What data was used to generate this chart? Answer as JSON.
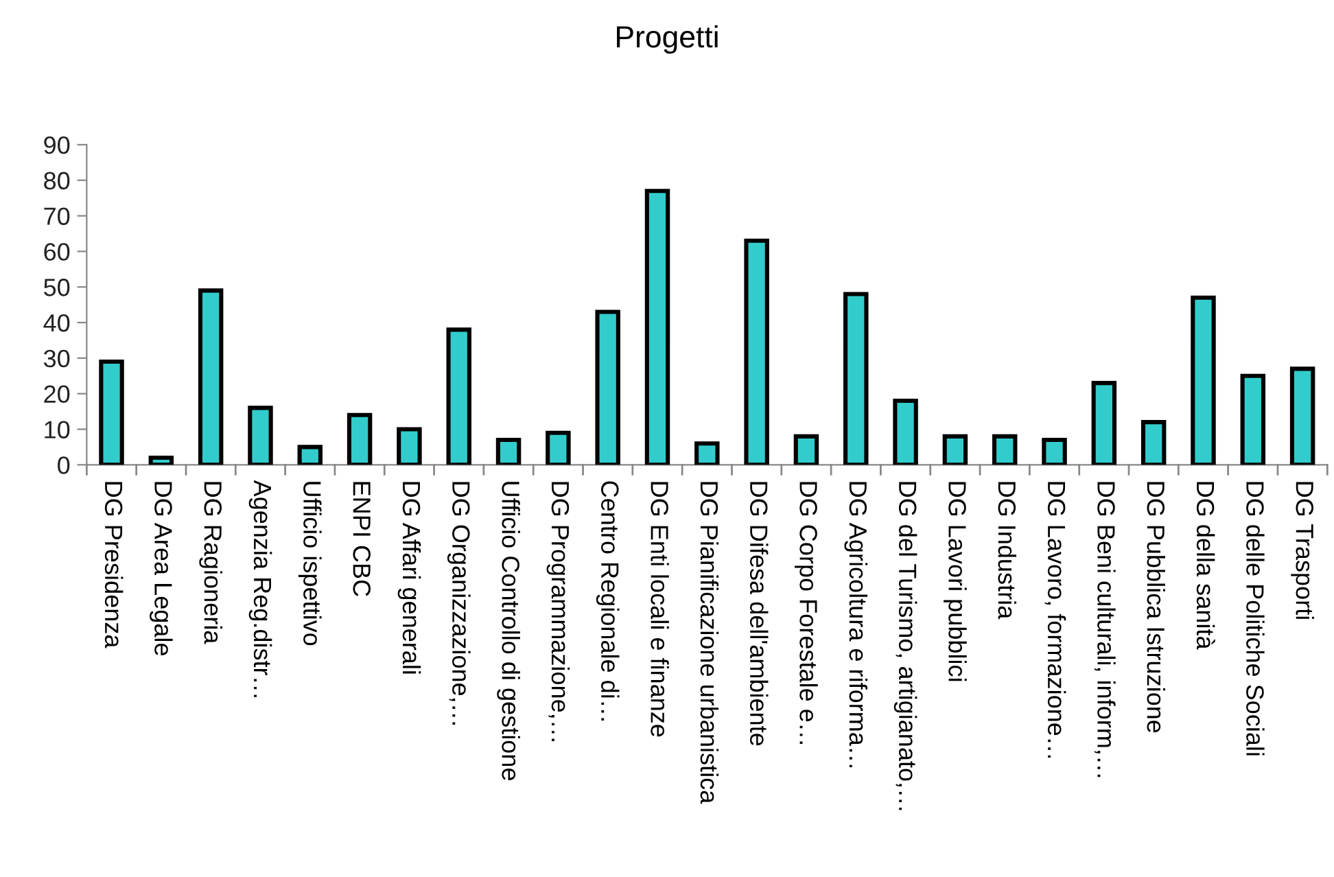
{
  "chart_data": {
    "type": "bar",
    "title": "Progetti",
    "categories": [
      "DG Presidenza",
      "DG Area Legale",
      "DG Ragioneria",
      "Agenzia Reg.distr…",
      "Ufficio ispettivo",
      "ENPI CBC",
      "DG Affari generali",
      "DG Organizzazione,…",
      "Ufficio Controllo di gestione",
      "DG Programmazione,…",
      "Centro Regionale di…",
      "DG Enti locali e finanze",
      "DG Pianificazione urbanistica",
      "DG Difesa dell'ambiente",
      "DG Corpo Forestale e…",
      "DG Agricoltura e riforma…",
      "DG del Turismo, artigianato,…",
      "DG Lavori pubblici",
      "DG Industria",
      "DG Lavoro, formazione…",
      "DG Beni culturali, inform,…",
      "DG Pubblica Istruzione",
      "DG della sanità",
      "DG delle Politiche Sociali",
      "DG Trasporti"
    ],
    "values": [
      29,
      2,
      49,
      16,
      5,
      14,
      10,
      38,
      7,
      9,
      43,
      77,
      6,
      63,
      8,
      48,
      18,
      8,
      8,
      7,
      23,
      12,
      47,
      25,
      27
    ],
    "color": "#33cccc",
    "ylim": [
      0,
      90
    ],
    "yticks": [
      0,
      10,
      20,
      30,
      40,
      50,
      60,
      70,
      80,
      90
    ],
    "grid": false,
    "legend": false
  }
}
